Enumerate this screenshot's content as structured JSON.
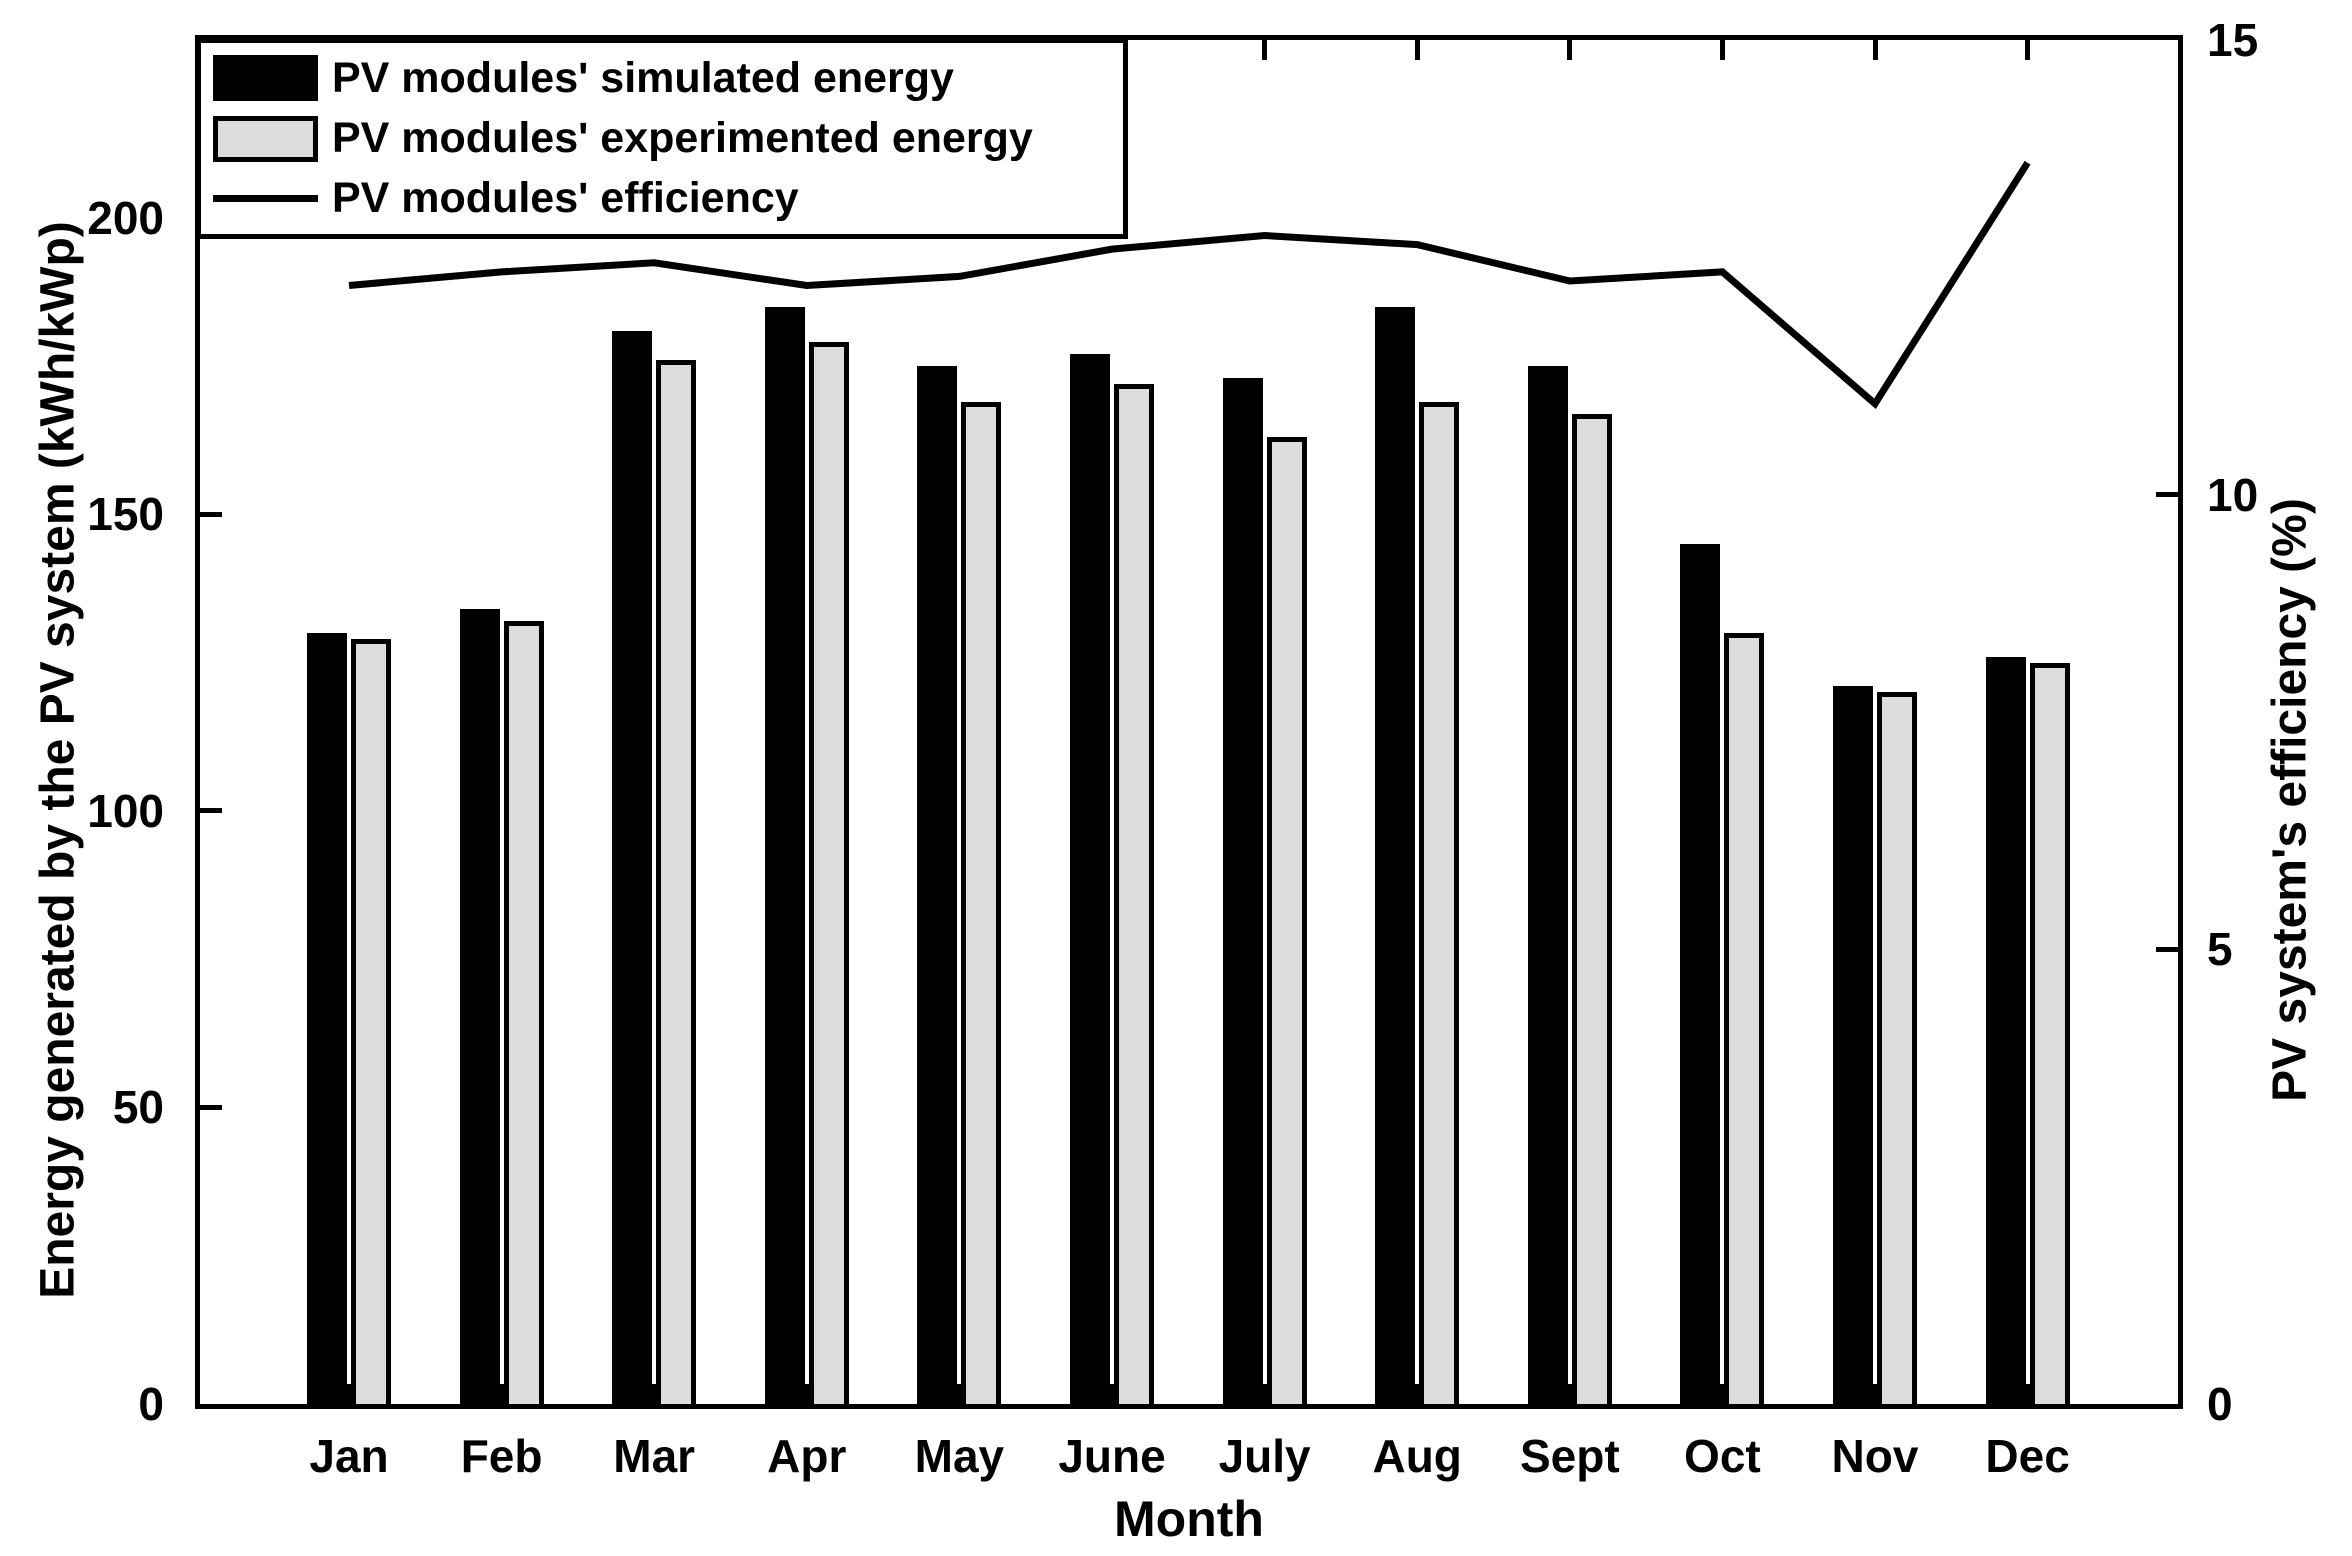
{
  "figure": {
    "background": "#ffffff",
    "xlabel": "Month",
    "left_ylabel": "Energy generated by the PV system (kWh/kWp)",
    "right_ylabel": "PV system's efficiency (%)"
  },
  "legend": {
    "position": "top-left",
    "items": [
      {
        "label": "PV modules' simulated energy",
        "swatch": "black-filled-bar"
      },
      {
        "label": "PV modules' experimented energy",
        "swatch": "gray-outlined-bar"
      },
      {
        "label": "PV modules' efficiency",
        "swatch": "black-line"
      }
    ]
  },
  "chart_data": {
    "type": "bar+line",
    "categories": [
      "Jan",
      "Feb",
      "Mar",
      "Apr",
      "May",
      "June",
      "July",
      "Aug",
      "Sept",
      "Oct",
      "Nov",
      "Dec"
    ],
    "series": [
      {
        "name": "PV modules' simulated energy",
        "type": "bar",
        "axis": "left",
        "color": "#000000",
        "values": [
          130,
          134,
          181,
          185,
          175,
          177,
          173,
          185,
          175,
          145,
          121,
          126
        ]
      },
      {
        "name": "PV modules' experimented energy",
        "type": "bar",
        "axis": "left",
        "color": "#dcdcdc",
        "values": [
          129,
          132,
          176,
          179,
          169,
          172,
          163,
          169,
          167,
          130,
          120,
          125
        ]
      },
      {
        "name": "PV modules' efficiency",
        "type": "line",
        "axis": "right",
        "color": "#000000",
        "values": [
          12.3,
          12.45,
          12.55,
          12.3,
          12.4,
          12.7,
          12.85,
          12.75,
          12.35,
          12.45,
          11.0,
          13.65
        ]
      }
    ],
    "title": "",
    "xlabel": "Month",
    "left_axis": {
      "label": "Energy generated by the PV system (kWh/kWp)",
      "ticks": [
        0,
        50,
        100,
        150,
        200
      ],
      "range": [
        0,
        230
      ]
    },
    "right_axis": {
      "label": "PV system's efficiency (%)",
      "ticks": [
        0,
        5,
        10,
        15
      ],
      "range": [
        0,
        15
      ]
    },
    "grid": false,
    "legend_position": "top-left"
  }
}
